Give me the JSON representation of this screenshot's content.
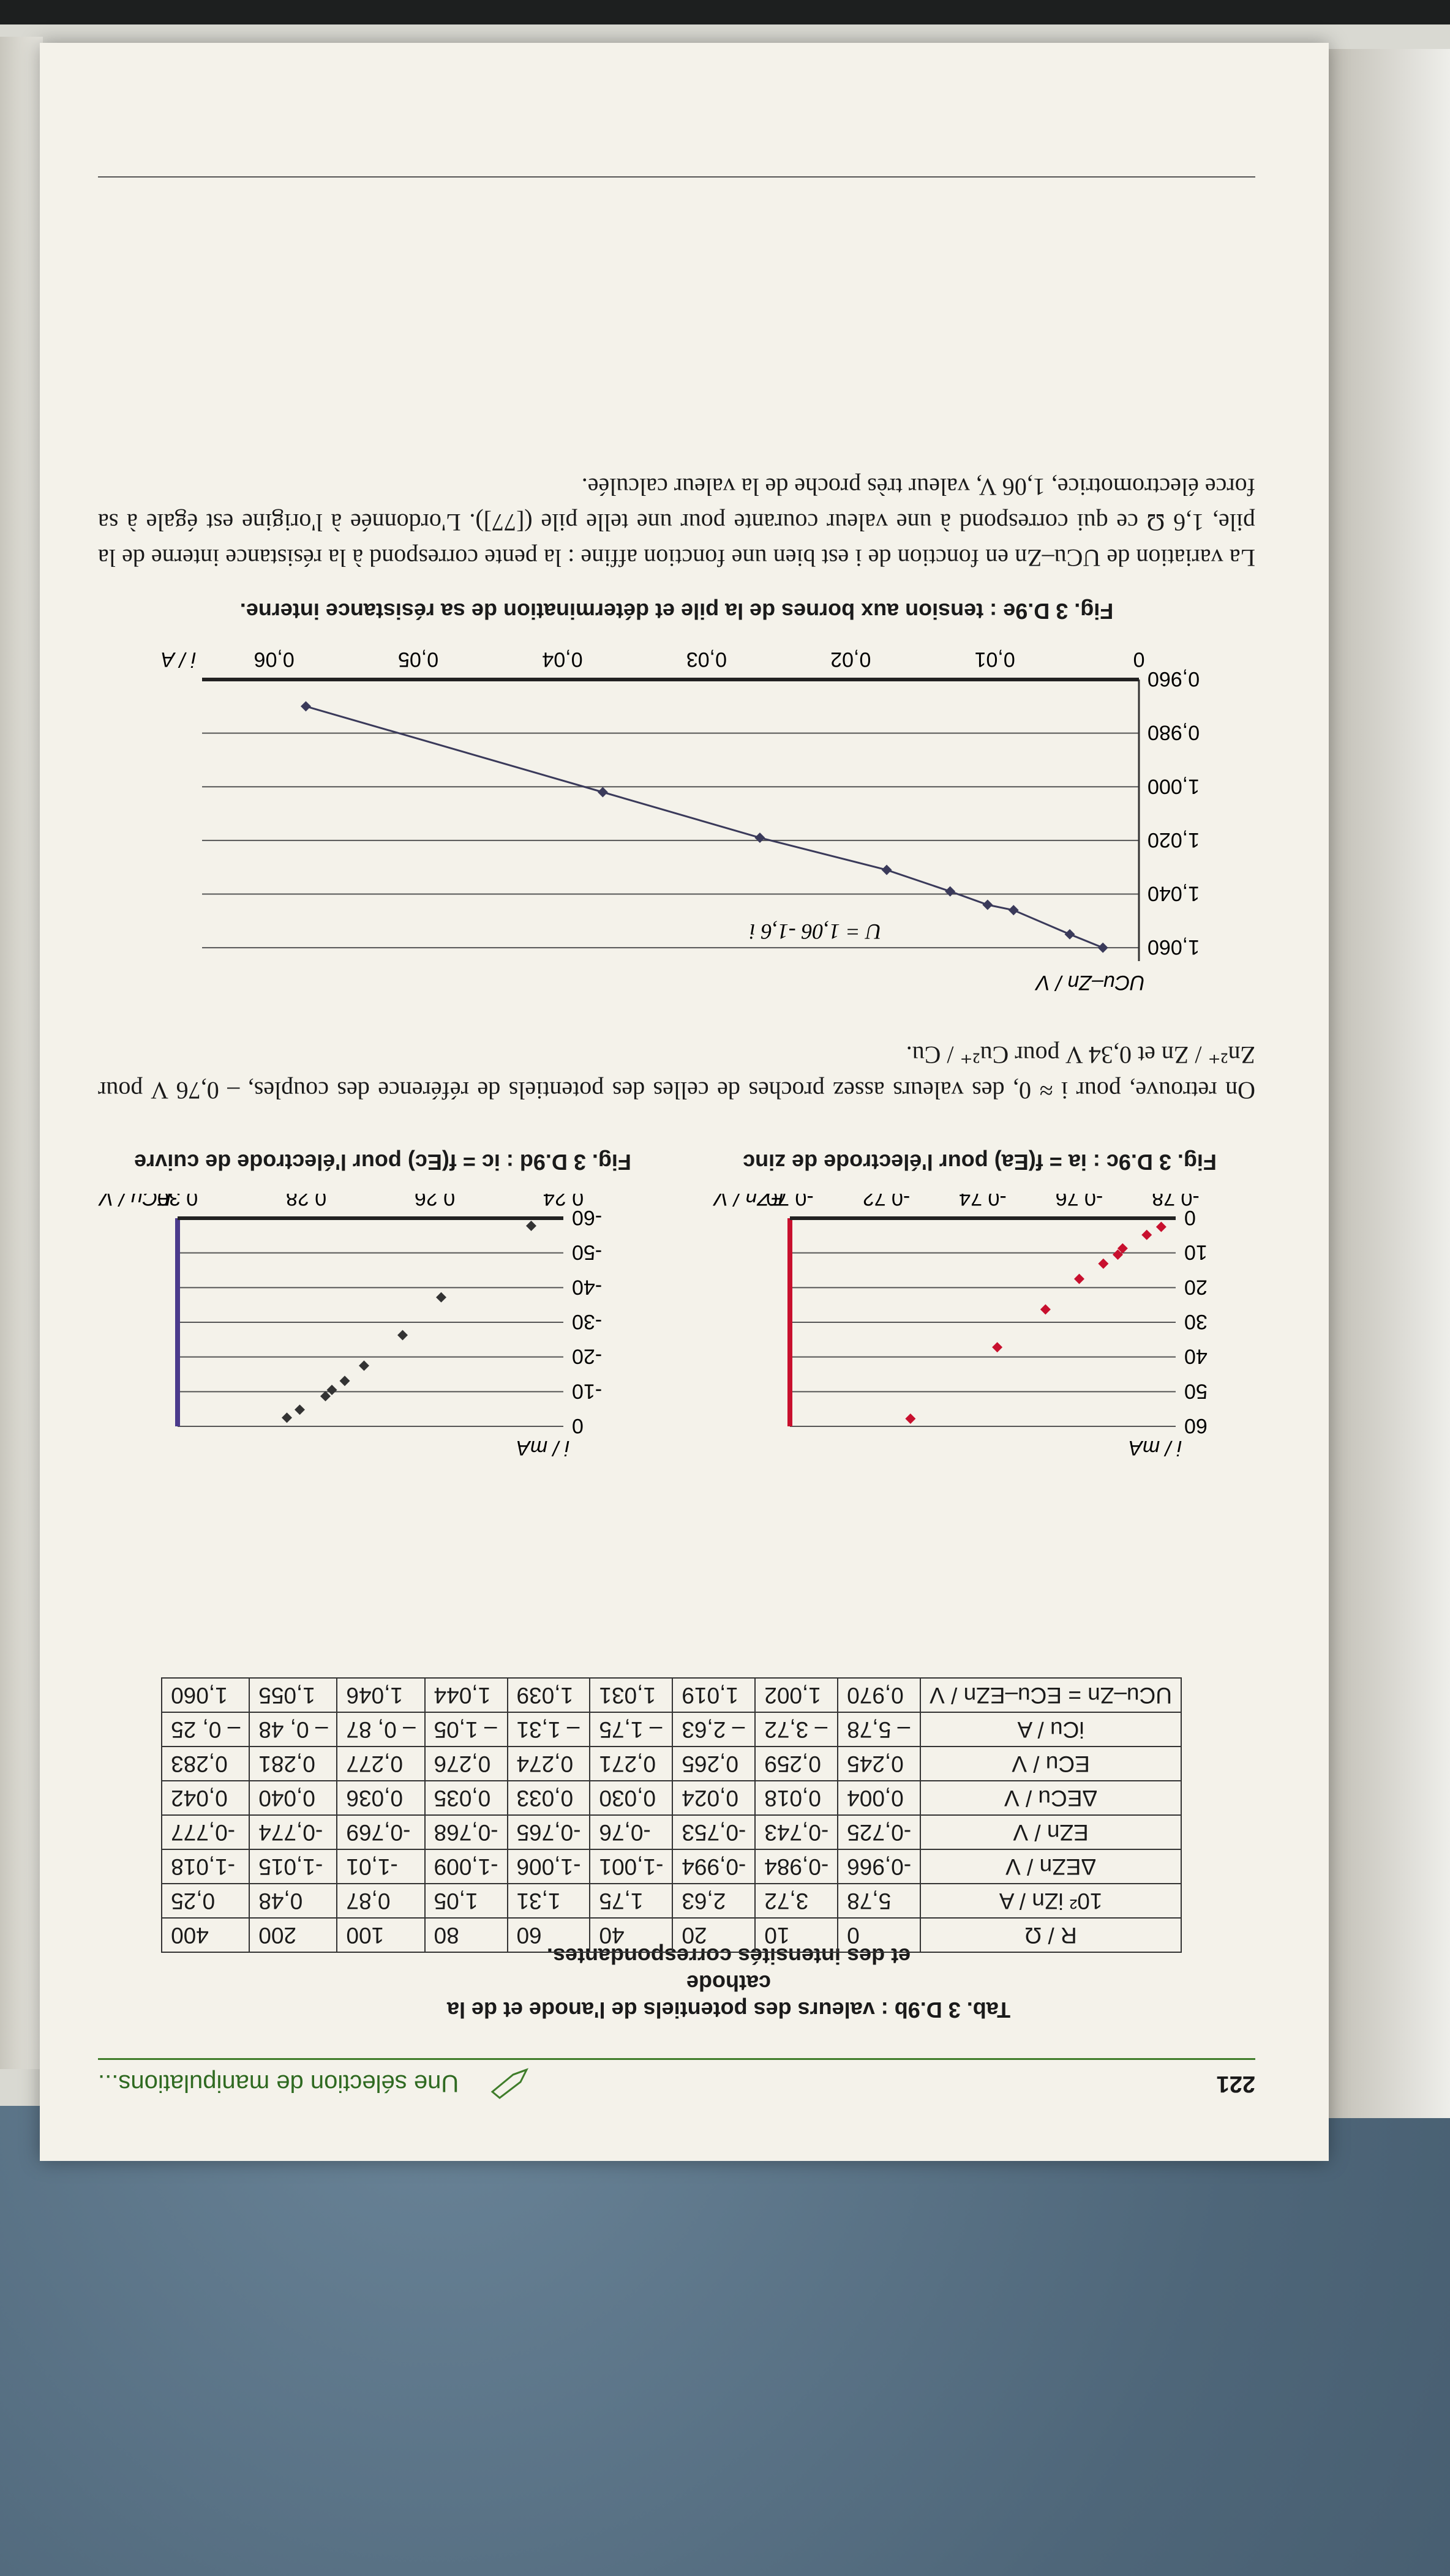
{
  "header": {
    "page_number": "221",
    "running_title": "Une sélection de manipulations..."
  },
  "table": {
    "caption_line1": "Tab. 3 D.9b : valeurs des potentiels de l'anode et de la cathode",
    "caption_line2": "et des intensités correspondantes.",
    "rows": [
      {
        "label": "R / Ω",
        "values": [
          "0",
          "10",
          "20",
          "40",
          "60",
          "80",
          "100",
          "200",
          "400"
        ]
      },
      {
        "label": "10² iZn / A",
        "values": [
          "5,78",
          "3,72",
          "2,63",
          "1,75",
          "1,31",
          "1,05",
          "0,87",
          "0,48",
          "0,25"
        ]
      },
      {
        "label": "ΔEZn / V",
        "values": [
          "-0,966",
          "-0,984",
          "-0,994",
          "-1,001",
          "-1,006",
          "-1,009",
          "-1,01",
          "-1,015",
          "-1,018"
        ]
      },
      {
        "label": "EZn / V",
        "values": [
          "-0,725",
          "-0,743",
          "-0,753",
          "-0,76",
          "-0,765",
          "-0,768",
          "-0,769",
          "-0,774",
          "-0,777"
        ]
      },
      {
        "label": "ΔECu / V",
        "values": [
          "0,004",
          "0,018",
          "0,024",
          "0,030",
          "0,033",
          "0,035",
          "0,036",
          "0,040",
          "0,042"
        ]
      },
      {
        "label": "ECu / V",
        "values": [
          "0,245",
          "0,259",
          "0,265",
          "0,271",
          "0,274",
          "0,276",
          "0,277",
          "0,281",
          "0,283"
        ]
      },
      {
        "label": "iCu / A",
        "values": [
          "– 5,78",
          "– 3,72",
          "– 2,63",
          "– 1,75",
          "– 1,31",
          "– 1,05",
          "– 0, 87",
          "– 0, 48",
          "– 0, 25"
        ]
      },
      {
        "label": "UCu–Zn = ECu–EZn / V",
        "values": [
          "0,970",
          "1,002",
          "1,019",
          "1,031",
          "1,039",
          "1,044",
          "1,046",
          "1,055",
          "1,060"
        ]
      }
    ]
  },
  "chart_data": [
    {
      "type": "scatter",
      "ylabel": "i / mA",
      "xlabel": "EZn / V",
      "x": [
        -0.725,
        -0.743,
        -0.753,
        -0.76,
        -0.765,
        -0.768,
        -0.769,
        -0.774,
        -0.777
      ],
      "y": [
        57.8,
        37.2,
        26.3,
        17.5,
        13.1,
        10.5,
        8.7,
        4.8,
        2.5
      ],
      "x_ticks": [
        "-0,78",
        "-0,76",
        "-0,74",
        "-0,72",
        "-0,70"
      ],
      "y_ticks": [
        "0",
        "10",
        "20",
        "30",
        "40",
        "50",
        "60"
      ],
      "xlim": [
        -0.78,
        -0.7
      ],
      "ylim": [
        0,
        60
      ],
      "color": "#c8102e"
    },
    {
      "type": "scatter",
      "ylabel": "i / mA",
      "xlabel": "ECu / V",
      "x": [
        0.245,
        0.259,
        0.265,
        0.271,
        0.274,
        0.276,
        0.277,
        0.281,
        0.283
      ],
      "y": [
        -57.8,
        -37.2,
        -26.3,
        -17.5,
        -13.1,
        -10.5,
        -8.7,
        -4.8,
        -2.5
      ],
      "x_ticks": [
        "0,24",
        "0,26",
        "0,28",
        "0,30"
      ],
      "y_ticks": [
        "0",
        "-10",
        "-20",
        "-30",
        "-40",
        "-50",
        "-60"
      ],
      "xlim": [
        0.24,
        0.3
      ],
      "ylim": [
        -60,
        0
      ],
      "color": "#333333"
    },
    {
      "type": "line",
      "ylabel": "UCu–Zn / V",
      "xlabel": "i / A",
      "x": [
        0.0025,
        0.0048,
        0.0087,
        0.0105,
        0.0131,
        0.0175,
        0.0263,
        0.0372,
        0.0578
      ],
      "y": [
        1.06,
        1.055,
        1.046,
        1.044,
        1.039,
        1.031,
        1.019,
        1.002,
        0.97
      ],
      "x_ticks": [
        "0",
        "0,01",
        "0,02",
        "0,03",
        "0,04",
        "0,05",
        "0,06"
      ],
      "y_ticks": [
        "0,960",
        "0,980",
        "1,000",
        "1,020",
        "1,040",
        "1,060"
      ],
      "xlim": [
        0,
        0.065
      ],
      "ylim": [
        0.96,
        1.065
      ],
      "annotation": "U = 1,06 -1,6 i"
    }
  ],
  "captions": {
    "fig_c": "Fig. 3 D.9c : ia = f(Ea) pour l'électrode de zinc",
    "fig_d": "Fig. 3 D.9d : ic = f(Ec) pour l'électrode de cuivre",
    "fig_e": "Fig. 3 D.9e : tension aux bornes de la pile et détermination de sa résistance interne."
  },
  "paragraphs": {
    "p1": "On retrouve, pour i ≈ 0, des valeurs assez proches de celles des potentiels de référence des couples, – 0,76 V pour Zn²⁺ / Zn et 0,34 V pour Cu²⁺ / Cu.",
    "p2": "La variation de UCu–Zn en fonction de i est bien une fonction affine : la pente correspond à la résistance interne de la pile, 1,6 Ω ce qui correspond à une valeur courante pour une telle pile ([77]). L'ordonnée à l'origine est égale à sa force électromotrice, 1,06 V, valeur très proche de la valeur calculée."
  }
}
